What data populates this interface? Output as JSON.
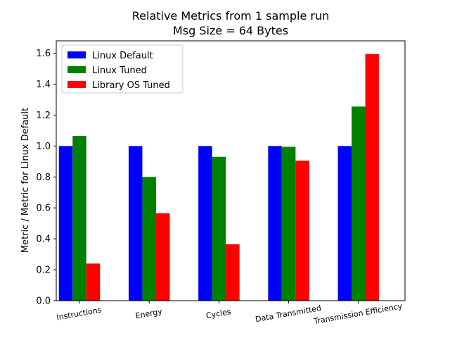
{
  "chart_data": {
    "type": "bar",
    "title_lines": [
      "Relative Metrics from 1 sample run",
      "Msg Size = 64 Bytes"
    ],
    "xlabel": "",
    "ylabel": "Metric / Metric for Linux Default",
    "categories": [
      "Instructions",
      "Energy",
      "Cycles",
      "Data Transmitted",
      "Transmission Efficiency"
    ],
    "series": [
      {
        "name": "Linux Default",
        "color": "#0000ff",
        "values": [
          1.0,
          1.0,
          1.0,
          1.0,
          1.0
        ]
      },
      {
        "name": "Linux Tuned",
        "color": "#008000",
        "values": [
          1.065,
          0.8,
          0.93,
          0.995,
          1.255
        ]
      },
      {
        "name": "Library OS Tuned",
        "color": "#ff0000",
        "values": [
          0.24,
          0.565,
          0.365,
          0.905,
          1.595
        ]
      }
    ],
    "ylim": [
      0,
      1.68
    ],
    "yticks": [
      "0.0",
      "0.2",
      "0.4",
      "0.6",
      "0.8",
      "1.0",
      "1.2",
      "1.4",
      "1.6"
    ],
    "legend_position": "upper-left",
    "grid": false
  }
}
